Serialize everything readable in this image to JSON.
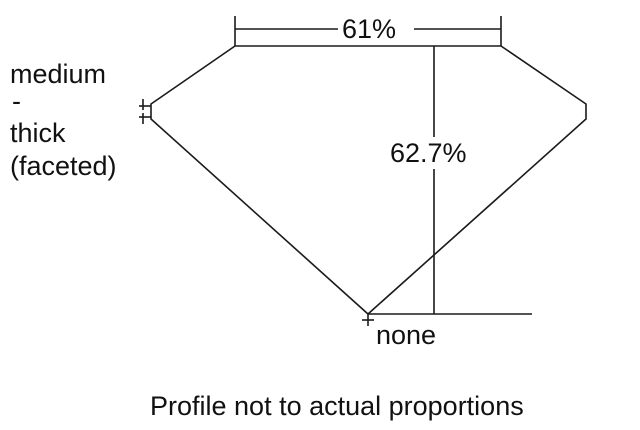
{
  "diagram": {
    "table_percent": "61%",
    "depth_percent": "62.7%",
    "girdle_label": [
      "medium",
      "-",
      "thick",
      "(faceted)"
    ],
    "culet_label": "none",
    "footnote": "Profile not to actual proportions",
    "line_color": "#1a1a1a"
  }
}
